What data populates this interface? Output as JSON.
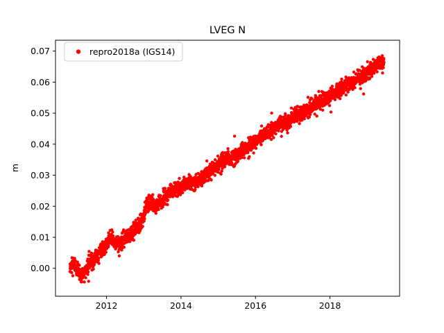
{
  "chart_data": {
    "type": "scatter",
    "title": "LVEG N",
    "xlabel": "",
    "ylabel": "m",
    "xlim": [
      2010.63,
      2019.87
    ],
    "ylim": [
      -0.009,
      0.0735
    ],
    "xticks": [
      2012,
      2014,
      2016,
      2018
    ],
    "xtick_labels": [
      "2012",
      "2014",
      "2016",
      "2018"
    ],
    "yticks": [
      0.0,
      0.01,
      0.02,
      0.03,
      0.04,
      0.05,
      0.06,
      0.07
    ],
    "ytick_labels": [
      "0.00",
      "0.01",
      "0.02",
      "0.03",
      "0.04",
      "0.05",
      "0.06",
      "0.07"
    ],
    "grid": false,
    "legend_position": "upper-left",
    "series": [
      {
        "name": "repro2018a (IGS14)",
        "color": "#ff0000",
        "marker": "circle",
        "x_start": 2011.02,
        "x_end": 2019.45,
        "n_points": 2800,
        "noise_std": 0.0012,
        "outlier_fraction": 0.02,
        "outlier_scale": 2.6,
        "seed": 42,
        "trend": [
          [
            2011.02,
            0.0005
          ],
          [
            2011.12,
            0.0015
          ],
          [
            2011.22,
            0.0
          ],
          [
            2011.32,
            -0.0025
          ],
          [
            2011.42,
            -0.001
          ],
          [
            2011.55,
            0.0025
          ],
          [
            2011.7,
            0.0035
          ],
          [
            2011.85,
            0.005
          ],
          [
            2011.95,
            0.0065
          ],
          [
            2012.05,
            0.009
          ],
          [
            2012.12,
            0.0105
          ],
          [
            2012.22,
            0.008
          ],
          [
            2012.35,
            0.0085
          ],
          [
            2012.5,
            0.0095
          ],
          [
            2012.65,
            0.011
          ],
          [
            2012.8,
            0.013
          ],
          [
            2012.92,
            0.0145
          ],
          [
            2013.0,
            0.0165
          ],
          [
            2013.08,
            0.0205
          ],
          [
            2013.2,
            0.021
          ],
          [
            2013.3,
            0.0195
          ],
          [
            2013.42,
            0.021
          ],
          [
            2013.55,
            0.0225
          ],
          [
            2013.7,
            0.0245
          ],
          [
            2013.85,
            0.0255
          ],
          [
            2014.0,
            0.026
          ],
          [
            2014.15,
            0.0275
          ],
          [
            2014.3,
            0.0275
          ],
          [
            2014.45,
            0.028
          ],
          [
            2014.6,
            0.0295
          ],
          [
            2014.75,
            0.031
          ],
          [
            2014.9,
            0.0325
          ],
          [
            2015.05,
            0.034
          ],
          [
            2015.2,
            0.035
          ],
          [
            2015.35,
            0.0355
          ],
          [
            2015.5,
            0.0365
          ],
          [
            2015.65,
            0.038
          ],
          [
            2015.8,
            0.039
          ],
          [
            2015.95,
            0.0405
          ],
          [
            2016.1,
            0.042
          ],
          [
            2016.25,
            0.0435
          ],
          [
            2016.4,
            0.044
          ],
          [
            2016.55,
            0.0455
          ],
          [
            2016.7,
            0.0465
          ],
          [
            2016.85,
            0.047
          ],
          [
            2017.0,
            0.0485
          ],
          [
            2017.15,
            0.0495
          ],
          [
            2017.3,
            0.0505
          ],
          [
            2017.45,
            0.0515
          ],
          [
            2017.6,
            0.053
          ],
          [
            2017.75,
            0.054
          ],
          [
            2017.9,
            0.055
          ],
          [
            2018.05,
            0.056
          ],
          [
            2018.2,
            0.057
          ],
          [
            2018.35,
            0.058
          ],
          [
            2018.5,
            0.0595
          ],
          [
            2018.65,
            0.0605
          ],
          [
            2018.8,
            0.0615
          ],
          [
            2018.95,
            0.0625
          ],
          [
            2019.1,
            0.064
          ],
          [
            2019.25,
            0.0655
          ],
          [
            2019.38,
            0.0665
          ],
          [
            2019.45,
            0.066
          ]
        ]
      }
    ],
    "colors": {
      "points": "#ff0000",
      "axes": "#000000",
      "legend_border": "#cccccc",
      "background": "#ffffff"
    }
  }
}
